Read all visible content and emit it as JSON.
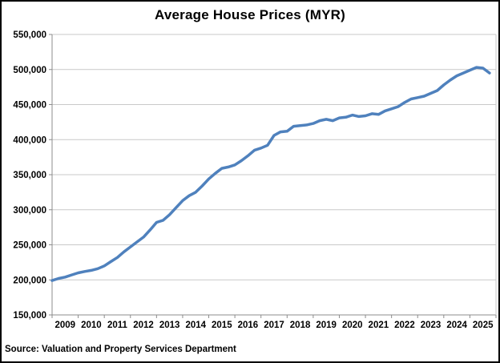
{
  "window": {
    "background": "#ffffff",
    "border_color": "#000000"
  },
  "source_note": "Source: Valuation and Property Services Department",
  "chart_data": {
    "type": "line",
    "title": "Average House Prices (MYR)",
    "xlabel": "",
    "ylabel": "",
    "ylim": [
      150000,
      550000
    ],
    "y_step": 50000,
    "y_tick_labels": [
      "150,000",
      "200,000",
      "250,000",
      "300,000",
      "350,000",
      "400,000",
      "450,000",
      "500,000",
      "550,000"
    ],
    "x_tick_labels": [
      "2009",
      "2010",
      "2011",
      "2012",
      "2013",
      "2014",
      "2015",
      "2016",
      "2017",
      "2018",
      "2019",
      "2020",
      "2021",
      "2022",
      "2023",
      "2024",
      "2025"
    ],
    "points_per_year": 4,
    "start_year": 2009,
    "grid": true,
    "legend": "none",
    "colors": {
      "line": "#4F81BD",
      "gridline": "#c9c9c9",
      "axis": "#8c8c8c",
      "text": "#000000"
    },
    "series": [
      {
        "name": "Average house price (MYR), quarterly 2009Q1-2025Q4",
        "values": [
          199000,
          202000,
          204000,
          207000,
          210000,
          212000,
          213500,
          216000,
          220000,
          226000,
          232000,
          240000,
          247000,
          254000,
          261000,
          271000,
          282000,
          285000,
          293000,
          303000,
          313000,
          320000,
          325000,
          334000,
          344000,
          352000,
          359000,
          361000,
          364000,
          370000,
          377000,
          385000,
          388000,
          392000,
          406000,
          411000,
          412000,
          419000,
          420000,
          421000,
          423000,
          427000,
          429000,
          427000,
          431000,
          432000,
          435000,
          433000,
          434000,
          437000,
          436000,
          441000,
          444000,
          447000,
          453000,
          458000,
          460000,
          462000,
          466000,
          470000,
          478000,
          485000,
          491000,
          495000,
          499000,
          503000,
          502000,
          495000
        ]
      }
    ]
  }
}
